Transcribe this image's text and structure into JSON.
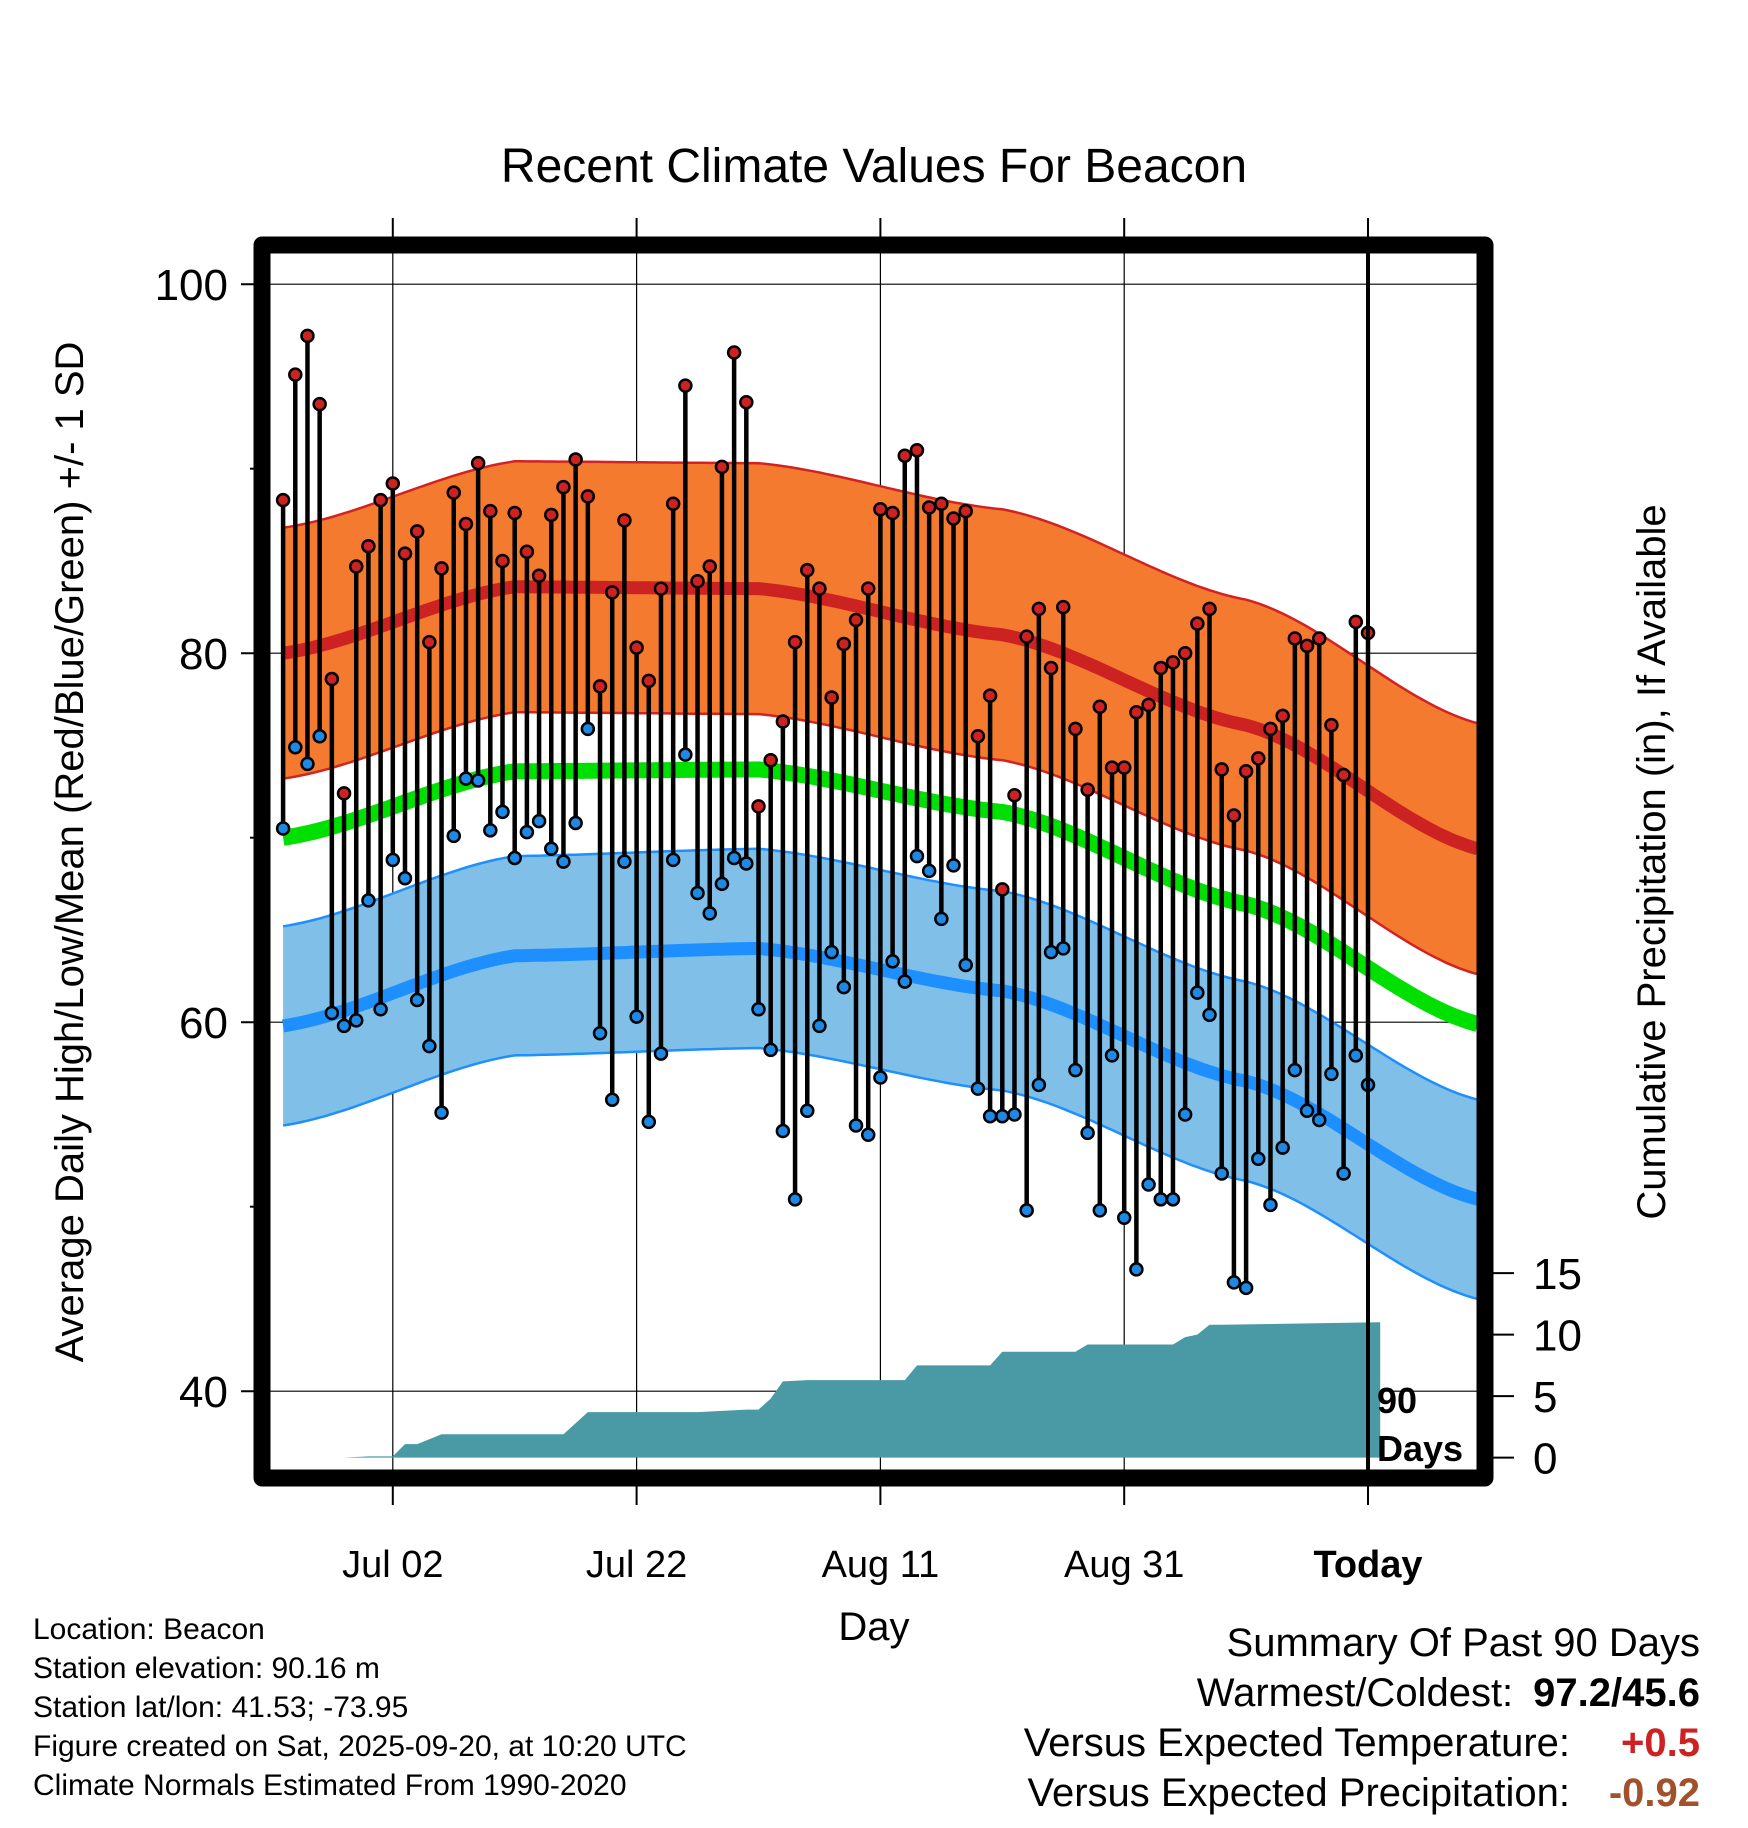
{
  "chart_data": {
    "type": "climate-range-plot",
    "title": "Recent Climate Values For Beacon",
    "xlabel": "Day",
    "ylabel_left": "Average Daily High/Low/Mean (Red/Blue/Green) +/- 1 SD",
    "ylabel_right": "Cumulative Precipitation (in), If Available",
    "ylim_left": [
      36,
      103
    ],
    "yticks_left": [
      40,
      60,
      80,
      100
    ],
    "y_precip_zero_temp": 36.4,
    "precip_scale_temp_per_inch": 0.6667,
    "yticks_right": [
      0,
      5,
      10,
      15
    ],
    "xlim_days": [
      -91,
      10
    ],
    "xticks": [
      {
        "day": -80,
        "label": "Jul 02"
      },
      {
        "day": -60,
        "label": "Jul 22"
      },
      {
        "day": -40,
        "label": "Aug 11"
      },
      {
        "day": -20,
        "label": "Aug 31"
      },
      {
        "day": 0,
        "label": "Today"
      }
    ],
    "today_annotation": "90\nDays",
    "highs": [
      88.3,
      95.1,
      97.2,
      93.5,
      78.6,
      72.4,
      84.7,
      85.8,
      88.3,
      89.2,
      85.4,
      86.6,
      80.6,
      84.6,
      88.7,
      87.0,
      90.3,
      87.7,
      85.0,
      87.6,
      85.5,
      84.2,
      87.5,
      89.0,
      90.5,
      88.5,
      78.2,
      83.3,
      87.2,
      80.3,
      78.5,
      83.5,
      88.1,
      94.5,
      83.9,
      84.7,
      90.1,
      96.3,
      93.6,
      71.7,
      74.2,
      76.3,
      80.6,
      84.5,
      83.5,
      77.6,
      80.5,
      81.8,
      83.5,
      87.8,
      87.6,
      90.7,
      91.0,
      87.9,
      88.1,
      87.3,
      87.7,
      75.5,
      77.7,
      67.2,
      72.3,
      80.9,
      82.4,
      79.2,
      82.5,
      75.9,
      72.6,
      77.1,
      73.8,
      73.8,
      76.8,
      77.2,
      79.2,
      79.5,
      80.0,
      81.6,
      82.4,
      73.7,
      71.2,
      73.6,
      74.3,
      75.9,
      76.6,
      80.8,
      80.4,
      80.8,
      76.1,
      73.4,
      81.7,
      81.1
    ],
    "lows": [
      70.5,
      74.9,
      74.0,
      75.5,
      60.5,
      59.8,
      60.1,
      66.6,
      60.7,
      68.8,
      67.8,
      61.2,
      58.7,
      55.1,
      70.1,
      73.2,
      73.1,
      70.4,
      71.4,
      68.9,
      70.3,
      70.9,
      69.4,
      68.7,
      70.8,
      75.9,
      59.4,
      55.8,
      68.7,
      60.3,
      54.6,
      58.3,
      68.8,
      74.5,
      67.0,
      65.9,
      67.5,
      68.9,
      68.6,
      60.7,
      58.5,
      54.1,
      50.4,
      55.2,
      59.8,
      63.8,
      61.9,
      54.4,
      53.9,
      57.0,
      63.3,
      62.2,
      69.0,
      68.2,
      65.6,
      68.5,
      63.1,
      56.4,
      54.9,
      54.9,
      55.0,
      49.8,
      56.6,
      63.8,
      64.0,
      57.4,
      54.0,
      49.8,
      58.2,
      49.4,
      46.6,
      51.2,
      50.4,
      50.4,
      55.0,
      61.6,
      60.4,
      51.8,
      45.9,
      45.6,
      52.6,
      50.1,
      53.2,
      57.4,
      55.2,
      54.7,
      57.2,
      51.8,
      58.2,
      56.6
    ],
    "normal_high": {
      "days": [
        -89,
        -70,
        -50,
        -30,
        -10,
        9
      ],
      "values": [
        80.0,
        83.6,
        83.5,
        81.0,
        76.1,
        69.4
      ]
    },
    "normal_high_sd": 6.8,
    "normal_low": {
      "days": [
        -89,
        -70,
        -50,
        -30,
        -10,
        9
      ],
      "values": [
        59.8,
        63.6,
        64.0,
        61.7,
        56.8,
        50.4
      ]
    },
    "normal_low_sd": 5.4,
    "normal_mean": {
      "days": [
        -89,
        -70,
        -50,
        -30,
        -10,
        9
      ],
      "values": [
        70.0,
        73.6,
        73.7,
        71.4,
        66.4,
        59.9
      ]
    },
    "cumulative_precip": {
      "days": [
        -89,
        -84,
        -82,
        -80,
        -79,
        -78,
        -76,
        -66,
        -64,
        -62,
        -55,
        -51,
        -50,
        -49,
        -48,
        -46,
        -38,
        -37,
        -31,
        -30,
        -24,
        -23,
        -18,
        -16,
        -15,
        -14,
        -13,
        -12,
        1
      ],
      "inches": [
        0.0,
        0.0,
        0.1,
        0.1,
        1.1,
        1.1,
        1.9,
        1.9,
        3.7,
        3.7,
        3.7,
        3.9,
        3.9,
        4.8,
        6.2,
        6.3,
        6.3,
        7.5,
        7.5,
        8.6,
        8.6,
        9.2,
        9.2,
        9.2,
        9.8,
        10.0,
        10.8,
        10.8,
        11.0
      ]
    },
    "colors": {
      "high_band": "#f47a30",
      "high_band_edge": "#d32222",
      "normal_high_line": "#cc2222",
      "low_band": "#80c0e8",
      "low_band_edge": "#1e8fff",
      "normal_low_line": "#1e8fff",
      "mean_line": "#00e000",
      "precip_fill": "#4a9aa5",
      "high_marker": "#cc2222",
      "low_marker": "#1e88e5"
    }
  },
  "info": {
    "location": "Location: Beacon",
    "elevation": "Station elevation: 90.16 m",
    "latlon": "Station lat/lon: 41.53; -73.95",
    "created": "Figure created on Sat, 2025-09-20, at 10:20 UTC",
    "normals": "Climate Normals Estimated From 1990-2020"
  },
  "summary": {
    "title": "Summary Of Past 90 Days",
    "warm_cold_label": "Warmest/Coldest:",
    "warm_cold_value": "97.2/45.6",
    "temp_label": "Versus Expected Temperature:",
    "temp_value": "+0.5",
    "temp_color": "#cc2222",
    "precip_label": "Versus Expected Precipitation:",
    "precip_value": "-0.92",
    "precip_color": "#a0522d"
  }
}
